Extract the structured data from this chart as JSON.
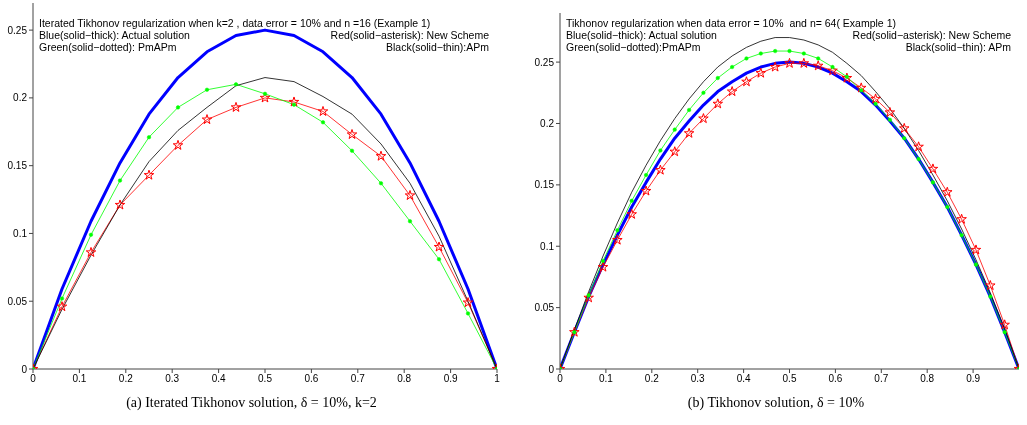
{
  "chart_data": [
    {
      "type": "line",
      "title": "(a) Iterated Tikhonov solution, δ = 10%, k=2",
      "annotations": [
        "Iterated Tikhonov regularization when k=2 , data error = 10% and n =16 (Example 1)",
        "Blue(solid−thick): Actual solution",
        "Red(solid−asterisk): New Scheme",
        "Green(solid−dotted): PmAPm",
        "Black(solid−thin):APm"
      ],
      "x": [
        0,
        0.0625,
        0.125,
        0.1875,
        0.25,
        0.3125,
        0.375,
        0.4375,
        0.5,
        0.5625,
        0.625,
        0.6875,
        0.75,
        0.8125,
        0.875,
        0.9375,
        1
      ],
      "series": [
        {
          "color": "#0000ff",
          "marker": "none",
          "values": [
            0,
            0.059,
            0.109,
            0.152,
            0.188,
            0.215,
            0.234,
            0.246,
            0.25,
            0.246,
            0.234,
            0.215,
            0.188,
            0.152,
            0.109,
            0.059,
            0
          ]
        },
        {
          "color": "#ff0000",
          "marker": "star",
          "values": [
            0,
            0.046,
            0.086,
            0.121,
            0.143,
            0.165,
            0.184,
            0.193,
            0.2,
            0.197,
            0.19,
            0.173,
            0.157,
            0.128,
            0.09,
            0.049,
            0
          ]
        },
        {
          "color": "#00ff00",
          "marker": "circle",
          "values": [
            0,
            0.052,
            0.099,
            0.139,
            0.171,
            0.193,
            0.206,
            0.21,
            0.203,
            0.195,
            0.182,
            0.161,
            0.137,
            0.109,
            0.081,
            0.041,
            0
          ]
        },
        {
          "color": "#000000",
          "marker": "none",
          "values": [
            0,
            0.044,
            0.084,
            0.121,
            0.153,
            0.176,
            0.193,
            0.209,
            0.215,
            0.212,
            0.201,
            0.188,
            0.166,
            0.137,
            0.098,
            0.05,
            0
          ]
        }
      ],
      "xlim": [
        0,
        1
      ],
      "xticks": [
        0,
        0.1,
        0.2,
        0.3,
        0.4,
        0.5,
        0.6,
        0.7,
        0.8,
        0.9,
        1
      ],
      "ylim": [
        0,
        0.27
      ],
      "yticks": [
        0,
        0.05,
        0.1,
        0.15,
        0.2,
        0.25
      ],
      "line_style": "solid"
    },
    {
      "type": "line",
      "title": "(b) Tikhonov solution, δ = 10%",
      "annotations": [
        "Tikhonov regularization when data error = 10%  and n= 64( Example 1)",
        "Blue(solid−thick): Actual solution",
        "Red(solid−asterisk): New Scheme",
        "Green(solid−dotted):PmAPm",
        "Black(solid−thin): APm"
      ],
      "x": [
        0,
        0.03125,
        0.0625,
        0.09375,
        0.125,
        0.15625,
        0.1875,
        0.21875,
        0.25,
        0.28125,
        0.3125,
        0.34375,
        0.375,
        0.40625,
        0.4375,
        0.46875,
        0.5,
        0.53125,
        0.5625,
        0.59375,
        0.625,
        0.65625,
        0.6875,
        0.71875,
        0.75,
        0.78125,
        0.8125,
        0.84375,
        0.875,
        0.90625,
        0.9375,
        0.96875,
        1
      ],
      "series": [
        {
          "color": "#0000ff",
          "marker": "none",
          "values": [
            0,
            0.03,
            0.059,
            0.085,
            0.109,
            0.132,
            0.152,
            0.171,
            0.188,
            0.202,
            0.215,
            0.226,
            0.234,
            0.241,
            0.246,
            0.249,
            0.25,
            0.249,
            0.246,
            0.241,
            0.234,
            0.226,
            0.215,
            0.202,
            0.188,
            0.171,
            0.152,
            0.132,
            0.109,
            0.085,
            0.059,
            0.03,
            0
          ]
        },
        {
          "color": "#ff0000",
          "marker": "star",
          "values": [
            0,
            0.03,
            0.058,
            0.083,
            0.105,
            0.126,
            0.145,
            0.162,
            0.177,
            0.192,
            0.204,
            0.216,
            0.226,
            0.234,
            0.241,
            0.246,
            0.249,
            0.249,
            0.247,
            0.243,
            0.237,
            0.229,
            0.22,
            0.209,
            0.196,
            0.181,
            0.163,
            0.144,
            0.122,
            0.097,
            0.068,
            0.036,
            0
          ]
        },
        {
          "color": "#00ff00",
          "marker": "circle",
          "values": [
            0,
            0.03,
            0.06,
            0.088,
            0.113,
            0.137,
            0.158,
            0.178,
            0.195,
            0.211,
            0.225,
            0.237,
            0.246,
            0.253,
            0.257,
            0.259,
            0.259,
            0.257,
            0.253,
            0.246,
            0.238,
            0.227,
            0.216,
            0.203,
            0.188,
            0.171,
            0.152,
            0.132,
            0.109,
            0.085,
            0.059,
            0.03,
            0
          ]
        },
        {
          "color": "#000000",
          "marker": "none",
          "values": [
            0,
            0.032,
            0.063,
            0.092,
            0.119,
            0.144,
            0.166,
            0.186,
            0.204,
            0.22,
            0.234,
            0.246,
            0.255,
            0.262,
            0.267,
            0.27,
            0.27,
            0.268,
            0.264,
            0.258,
            0.249,
            0.239,
            0.226,
            0.212,
            0.196,
            0.178,
            0.158,
            0.137,
            0.114,
            0.089,
            0.062,
            0.033,
            0
          ]
        }
      ],
      "xlim": [
        0,
        1
      ],
      "xticks": [
        0,
        0.1,
        0.2,
        0.3,
        0.4,
        0.5,
        0.6,
        0.7,
        0.8,
        0.9
      ],
      "ylim": [
        0,
        0.29
      ],
      "yticks": [
        0,
        0.05,
        0.1,
        0.15,
        0.2,
        0.25
      ],
      "line_style": "solid"
    }
  ]
}
